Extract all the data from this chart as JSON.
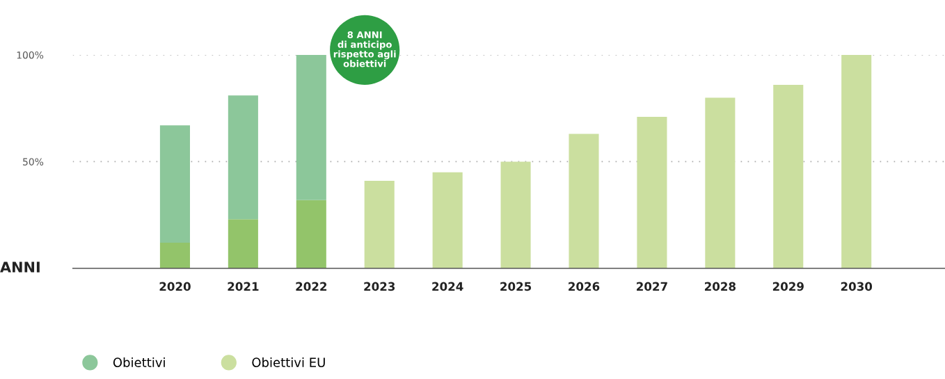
{
  "chart_data": {
    "type": "bar",
    "stacked": true,
    "x": [
      2020,
      2021,
      2022,
      2023,
      2024,
      2025,
      2026,
      2027,
      2028,
      2029,
      2030
    ],
    "xlim": [
      2018.5,
      2031.3
    ],
    "xticks": [
      2020,
      2021,
      2022,
      2023,
      2024,
      2025,
      2026,
      2027,
      2028,
      2029,
      2030
    ],
    "xlabel": "ANNI",
    "series": [
      {
        "name": "Obiettivi EU",
        "color": "#cbdf9f",
        "colors": [
          "#93c46a",
          "#93c46a",
          "#93c46a",
          "#cbdf9f",
          "#cbdf9f",
          "#cbdf9f",
          "#cbdf9f",
          "#cbdf9f",
          "#cbdf9f",
          "#cbdf9f",
          "#cbdf9f"
        ],
        "values": [
          12,
          23,
          32,
          41,
          45,
          50,
          63,
          71,
          80,
          86,
          100
        ]
      },
      {
        "name": "Obiettivi",
        "color": "#8cc79a",
        "values": [
          55,
          58,
          68,
          null,
          null,
          null,
          null,
          null,
          null,
          null,
          null
        ]
      }
    ],
    "ylim": [
      0,
      100
    ],
    "yticks": [
      {
        "value": 50,
        "label": "50%"
      },
      {
        "value": 100,
        "label": "100%"
      }
    ],
    "grid": "y",
    "legend": "bottom left",
    "annotations": [
      "8 ANNI\ndi anticipo\nrispetto agli\nobiettivi"
    ]
  }
}
